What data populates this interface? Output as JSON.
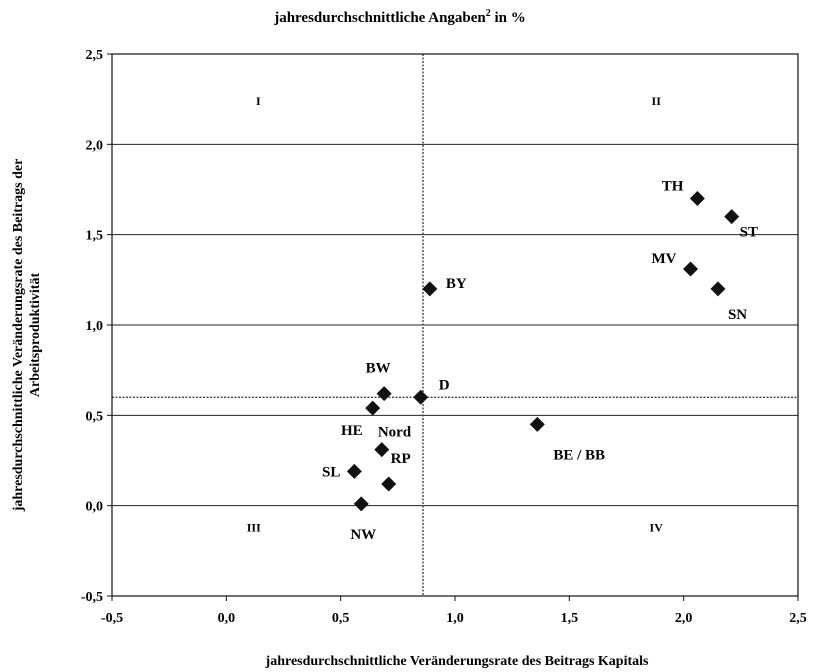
{
  "chart_data": {
    "type": "scatter",
    "title": "jahresdurchschnittliche Angaben",
    "title_superscript": "2",
    "title_suffix": " in %",
    "xlabel": "jahresdurchschnittliche Veränderungsrate des Beitrags Kapitals",
    "ylabel_line1": "jahresdurchschnittliche Veränderungsrate des Beitrags der",
    "ylabel_line2": "Arbeitsproduktivität",
    "xlim": [
      -0.5,
      2.5
    ],
    "ylim": [
      -0.5,
      2.5
    ],
    "x_ticks": [
      -0.5,
      0.0,
      0.5,
      1.0,
      1.5,
      2.0,
      2.5
    ],
    "x_tick_labels": [
      "-0,5",
      "0,0",
      "0,5",
      "1,0",
      "1,5",
      "2,0",
      "2,5"
    ],
    "y_ticks": [
      -0.5,
      0.0,
      0.5,
      1.0,
      1.5,
      2.0,
      2.5
    ],
    "y_tick_labels": [
      "-0,5",
      "0,0",
      "0,5",
      "1,0",
      "1,5",
      "2,0",
      "2,5"
    ],
    "grid": "horizontal",
    "reference_lines": {
      "x": 0.86,
      "y": 0.6
    },
    "marker": "diamond",
    "marker_color": "#111111",
    "points": [
      {
        "label": "TH",
        "x": 2.06,
        "y": 1.7
      },
      {
        "label": "ST",
        "x": 2.21,
        "y": 1.6
      },
      {
        "label": "MV",
        "x": 2.03,
        "y": 1.31
      },
      {
        "label": "SN",
        "x": 2.15,
        "y": 1.2
      },
      {
        "label": "BY",
        "x": 0.89,
        "y": 1.2
      },
      {
        "label": "BW",
        "x": 0.69,
        "y": 0.62
      },
      {
        "label": "D",
        "x": 0.85,
        "y": 0.6
      },
      {
        "label": "HE",
        "x": 0.64,
        "y": 0.54
      },
      {
        "label": "Nord",
        "x": 0.68,
        "y": 0.31
      },
      {
        "label": "RP",
        "x": 0.71,
        "y": 0.12
      },
      {
        "label": "SL",
        "x": 0.56,
        "y": 0.19
      },
      {
        "label": "NW",
        "x": 0.59,
        "y": 0.01
      },
      {
        "label": "BE / BB",
        "x": 1.36,
        "y": 0.45
      }
    ],
    "quadrant_labels": [
      {
        "label": "I",
        "x": 0.14,
        "y": 2.24
      },
      {
        "label": "II",
        "x": 1.88,
        "y": 2.24
      },
      {
        "label": "III",
        "x": 0.12,
        "y": -0.12
      },
      {
        "label": "IV",
        "x": 1.88,
        "y": -0.12
      }
    ]
  }
}
